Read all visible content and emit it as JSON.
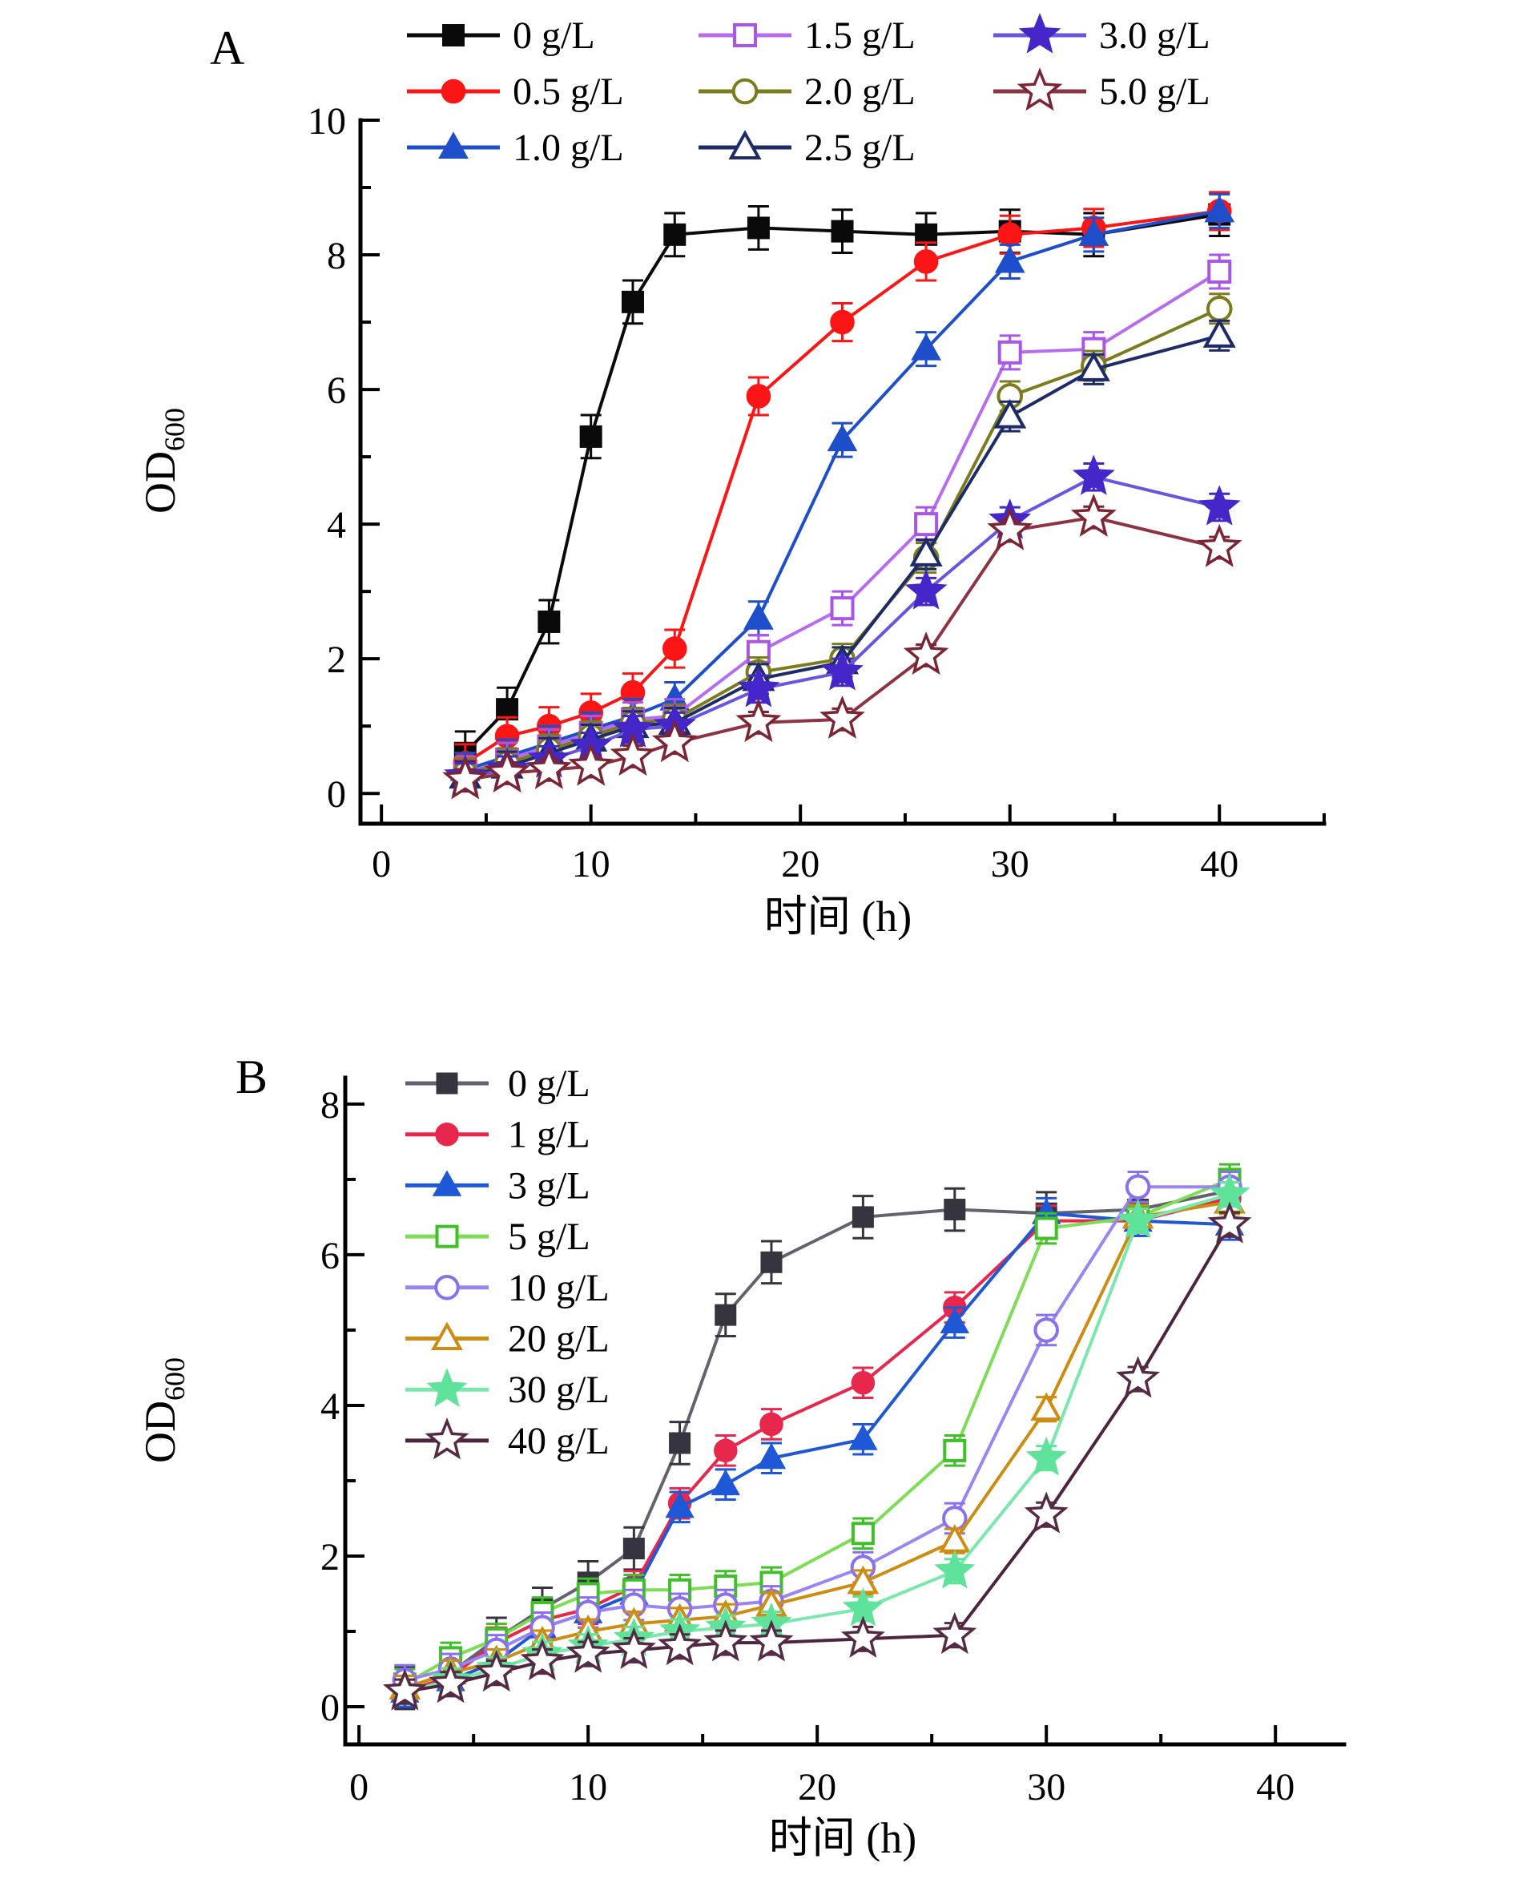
{
  "figure": {
    "background": "#ffffff",
    "description_visible_panels": [
      "A",
      "B"
    ]
  },
  "chart_data": [
    {
      "type": "line",
      "panel_label": "A",
      "x_axis": {
        "label": "时间 (h)",
        "min": -1,
        "max": 45,
        "major_ticks": [
          0,
          10,
          20,
          30,
          40
        ],
        "tick_labels": [
          "0",
          "10",
          "20",
          "30",
          "40"
        ],
        "minor_ticks": [
          5,
          15,
          25,
          35,
          45
        ]
      },
      "y_axis": {
        "label_main": "OD",
        "label_sub": "600",
        "min": -0.45,
        "max": 10,
        "major_ticks": [
          0,
          2,
          4,
          6,
          8,
          10
        ],
        "tick_labels": [
          "0",
          "2",
          "4",
          "6",
          "8",
          "10"
        ],
        "minor_ticks": [
          1,
          3,
          5,
          7,
          9
        ]
      },
      "legend": {
        "position": "top-grid",
        "columns": 3
      },
      "x": [
        4,
        6,
        8,
        10,
        12,
        14,
        18,
        22,
        26,
        30,
        34,
        40
      ],
      "series": [
        {
          "name": "0 g/L",
          "marker": "square",
          "color": "#0a0a0a",
          "line_color": "#0a0a0a",
          "err": 0.32,
          "values": [
            0.6,
            1.25,
            2.55,
            5.3,
            7.3,
            8.3,
            8.4,
            8.35,
            8.3,
            8.35,
            8.3,
            8.6
          ]
        },
        {
          "name": "0.5 g/L",
          "marker": "circle",
          "color": "#fb1515",
          "line_color": "#fb1515",
          "err": 0.28,
          "values": [
            0.45,
            0.85,
            1.0,
            1.2,
            1.5,
            2.15,
            5.9,
            7.0,
            7.9,
            8.3,
            8.4,
            8.65
          ]
        },
        {
          "name": "1.0 g/L",
          "marker": "triangle",
          "color": "#1f4ecb",
          "line_color": "#1f4ecb",
          "err": 0.25,
          "values": [
            0.35,
            0.55,
            0.75,
            0.95,
            1.15,
            1.4,
            2.6,
            5.25,
            6.6,
            7.9,
            8.3,
            8.65
          ]
        },
        {
          "name": "1.5 g/L",
          "marker": "square-open",
          "color": "#aa55ea",
          "line_color": "#b76cf0",
          "err": 0.25,
          "values": [
            0.3,
            0.5,
            0.7,
            0.9,
            1.1,
            1.15,
            2.1,
            2.75,
            4.0,
            6.55,
            6.6,
            7.75
          ]
        },
        {
          "name": "2.0 g/L",
          "marker": "circle-open",
          "color": "#7c7c1f",
          "line_color": "#7c7c1f",
          "err": 0.22,
          "values": [
            0.3,
            0.45,
            0.65,
            0.85,
            1.05,
            1.1,
            1.8,
            2.0,
            3.5,
            5.9,
            6.35,
            7.2
          ]
        },
        {
          "name": "2.5 g/L",
          "marker": "triangle-open",
          "color": "#1d2b68",
          "line_color": "#1d2b68",
          "err": 0.22,
          "values": [
            0.25,
            0.4,
            0.6,
            0.8,
            1.0,
            1.05,
            1.7,
            1.95,
            3.55,
            5.6,
            6.3,
            6.8
          ]
        },
        {
          "name": "3.0 g/L",
          "marker": "star",
          "color": "#4526c8",
          "line_color": "#6a55e0",
          "err": 0.2,
          "values": [
            0.25,
            0.35,
            0.5,
            0.7,
            0.95,
            1.0,
            1.55,
            1.8,
            3.0,
            4.05,
            4.7,
            4.25
          ]
        },
        {
          "name": "5.0 g/L",
          "marker": "star-open",
          "color": "#7b2434",
          "line_color": "#8d3341",
          "err": 0.16,
          "values": [
            0.2,
            0.3,
            0.35,
            0.4,
            0.55,
            0.75,
            1.05,
            1.1,
            2.05,
            3.9,
            4.1,
            3.65
          ]
        }
      ]
    },
    {
      "type": "line",
      "panel_label": "B",
      "x_axis": {
        "label": "时间 (h)",
        "min": -0.6,
        "max": 43,
        "major_ticks": [
          0,
          10,
          20,
          30,
          40
        ],
        "tick_labels": [
          "0",
          "10",
          "20",
          "30",
          "40"
        ],
        "minor_ticks": [
          5,
          15,
          25,
          35
        ]
      },
      "y_axis": {
        "label_main": "OD",
        "label_sub": "600",
        "min": -0.5,
        "max": 8.35,
        "major_ticks": [
          0,
          2,
          4,
          6,
          8
        ],
        "tick_labels": [
          "0",
          "2",
          "4",
          "6",
          "8"
        ],
        "minor_ticks": [
          1,
          3,
          5,
          7
        ]
      },
      "legend": {
        "position": "inside-left-list",
        "columns": 1
      },
      "x": [
        2,
        4,
        6,
        8,
        10,
        12,
        14,
        16,
        18,
        22,
        26,
        30,
        34,
        38
      ],
      "series": [
        {
          "name": "0 g/L",
          "marker": "square",
          "color": "#35343f",
          "line_color": "#63626e",
          "err": 0.28,
          "values": [
            0.25,
            0.45,
            0.9,
            1.3,
            1.65,
            2.1,
            3.5,
            5.2,
            5.9,
            6.5,
            6.6,
            6.55,
            6.6,
            6.85
          ]
        },
        {
          "name": "1 g/L",
          "marker": "circle",
          "color": "#e8274c",
          "line_color": "#e8274c",
          "err": 0.2,
          "values": [
            0.2,
            0.4,
            0.85,
            1.15,
            1.3,
            1.6,
            2.7,
            3.4,
            3.75,
            4.3,
            5.3,
            6.45,
            6.45,
            6.75
          ]
        },
        {
          "name": "3 g/L",
          "marker": "triangle",
          "color": "#1f58d6",
          "line_color": "#1f58d6",
          "err": 0.2,
          "values": [
            0.2,
            0.35,
            0.6,
            1.05,
            1.25,
            1.5,
            2.65,
            2.95,
            3.3,
            3.55,
            5.1,
            6.55,
            6.45,
            6.4
          ]
        },
        {
          "name": "5 g/L",
          "marker": "square-open",
          "color": "#3fbf28",
          "line_color": "#7ddd55",
          "err": 0.2,
          "values": [
            0.3,
            0.65,
            0.9,
            1.25,
            1.5,
            1.55,
            1.55,
            1.6,
            1.65,
            2.3,
            3.4,
            6.35,
            6.5,
            7.0
          ]
        },
        {
          "name": "10 g/L",
          "marker": "circle-open",
          "color": "#8a70ef",
          "line_color": "#9b85f3",
          "err": 0.2,
          "values": [
            0.35,
            0.5,
            0.75,
            1.05,
            1.25,
            1.35,
            1.3,
            1.35,
            1.4,
            1.85,
            2.5,
            5.0,
            6.9,
            6.9
          ]
        },
        {
          "name": "20 g/L",
          "marker": "triangle-open",
          "color": "#cc8d12",
          "line_color": "#cc8d12",
          "err": 0.16,
          "values": [
            0.25,
            0.45,
            0.6,
            0.85,
            1.0,
            1.1,
            1.15,
            1.2,
            1.35,
            1.65,
            2.2,
            3.95,
            6.5,
            6.7
          ]
        },
        {
          "name": "30 g/L",
          "marker": "star",
          "color": "#5fe29a",
          "line_color": "#7ae8ad",
          "err": 0.16,
          "values": [
            0.2,
            0.35,
            0.5,
            0.7,
            0.8,
            0.9,
            1.0,
            1.05,
            1.1,
            1.3,
            1.8,
            3.3,
            6.45,
            6.8
          ]
        },
        {
          "name": "40 g/L",
          "marker": "star-open",
          "color": "#552a44",
          "line_color": "#4e2540",
          "err": 0.16,
          "values": [
            0.2,
            0.3,
            0.45,
            0.6,
            0.7,
            0.75,
            0.8,
            0.85,
            0.85,
            0.9,
            0.95,
            2.55,
            4.35,
            6.4
          ]
        }
      ]
    }
  ]
}
